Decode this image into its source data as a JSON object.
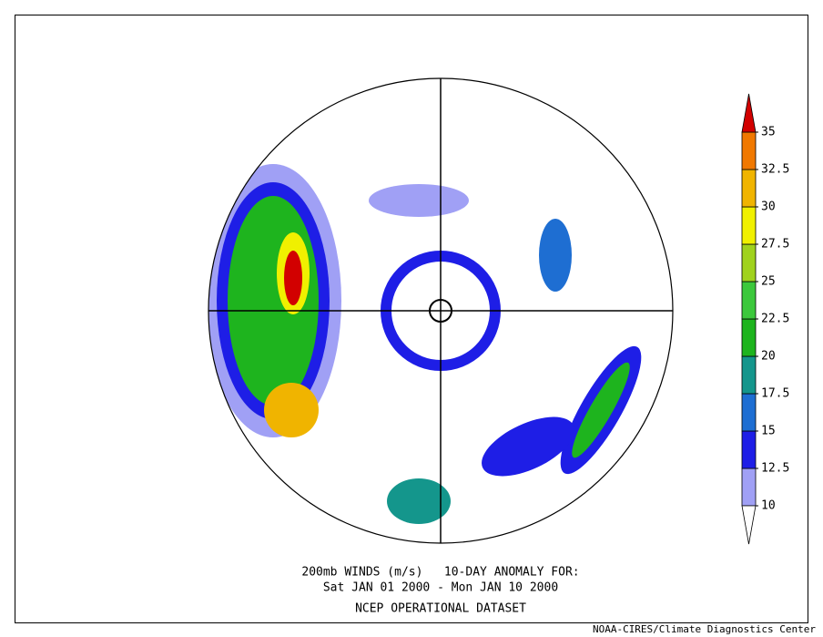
{
  "caption": [
    "200mb WINDS (m/s)   10-DAY ANOMALY FOR:",
    "Sat JAN 01 2000 - Mon JAN 10 2000",
    "NCEP OPERATIONAL DATASET"
  ],
  "colorbar": {
    "levels": [
      10,
      12.5,
      15,
      17.5,
      20,
      22.5,
      25,
      27.5,
      30,
      32.5,
      35
    ],
    "colors": [
      "#a0a0f5",
      "#1e1ee6",
      "#1e6ed2",
      "#14968c",
      "#1eb41e",
      "#3cc83c",
      "#a0d21e",
      "#f0f000",
      "#f0b400",
      "#f07800"
    ],
    "under_color": "#ffffff",
    "over_color": "#d20000"
  },
  "credit": "NOAA-CIRES/Climate Diagnostics Center"
}
